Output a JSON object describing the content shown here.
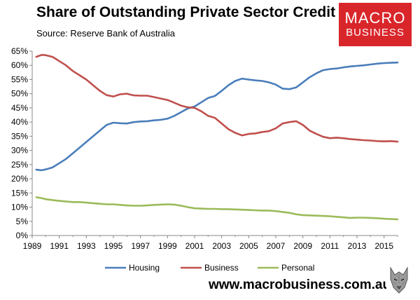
{
  "title": "Share of Outstanding Private Sector Credit",
  "subtitle": "Source: Reserve Bank of Australia",
  "logo": {
    "line1": "MACRO",
    "line2": "BUSINESS",
    "color": "#d9262b"
  },
  "footer": {
    "url": "www.macrobusiness.com.au"
  },
  "chart_data": {
    "type": "line",
    "title": "Share of Outstanding Private Sector Credit",
    "xlabel": "",
    "ylabel": "",
    "xlim": [
      1989,
      2016
    ],
    "ylim": [
      0,
      65
    ],
    "x_ticks": [
      1989,
      1991,
      1993,
      1995,
      1997,
      1999,
      2001,
      2003,
      2005,
      2007,
      2009,
      2011,
      2013,
      2015
    ],
    "y_ticks": [
      0,
      5,
      10,
      15,
      20,
      25,
      30,
      35,
      40,
      45,
      50,
      55,
      60,
      65
    ],
    "y_tick_labels": [
      "0%",
      "5%",
      "10%",
      "15%",
      "20%",
      "25%",
      "30%",
      "35%",
      "40%",
      "45%",
      "50%",
      "55%",
      "60%",
      "65%"
    ],
    "grid": false,
    "legend_position": "bottom",
    "series": [
      {
        "name": "Housing",
        "color": "#4a7ebb",
        "points": [
          [
            1989.3,
            23.2
          ],
          [
            1989.7,
            23.0
          ],
          [
            1990.0,
            23.3
          ],
          [
            1990.5,
            24.0
          ],
          [
            1991.0,
            25.5
          ],
          [
            1991.5,
            27.0
          ],
          [
            1992.0,
            29.0
          ],
          [
            1992.5,
            31.0
          ],
          [
            1993.0,
            33.0
          ],
          [
            1993.5,
            35.0
          ],
          [
            1994.0,
            37.0
          ],
          [
            1994.5,
            39.0
          ],
          [
            1995.0,
            39.8
          ],
          [
            1995.5,
            39.6
          ],
          [
            1996.0,
            39.5
          ],
          [
            1996.5,
            40.0
          ],
          [
            1997.0,
            40.2
          ],
          [
            1997.5,
            40.3
          ],
          [
            1998.0,
            40.6
          ],
          [
            1998.5,
            40.8
          ],
          [
            1999.0,
            41.2
          ],
          [
            1999.5,
            42.2
          ],
          [
            2000.0,
            43.5
          ],
          [
            2000.5,
            44.8
          ],
          [
            2001.0,
            45.5
          ],
          [
            2001.5,
            47.0
          ],
          [
            2002.0,
            48.5
          ],
          [
            2002.5,
            49.2
          ],
          [
            2003.0,
            51.0
          ],
          [
            2003.5,
            53.0
          ],
          [
            2004.0,
            54.5
          ],
          [
            2004.5,
            55.3
          ],
          [
            2005.0,
            55.0
          ],
          [
            2005.5,
            54.7
          ],
          [
            2006.0,
            54.5
          ],
          [
            2006.5,
            54.0
          ],
          [
            2007.0,
            53.2
          ],
          [
            2007.5,
            51.8
          ],
          [
            2008.0,
            51.6
          ],
          [
            2008.5,
            52.2
          ],
          [
            2009.0,
            54.0
          ],
          [
            2009.5,
            55.8
          ],
          [
            2010.0,
            57.2
          ],
          [
            2010.5,
            58.3
          ],
          [
            2011.0,
            58.7
          ],
          [
            2011.5,
            58.9
          ],
          [
            2012.0,
            59.3
          ],
          [
            2012.5,
            59.6
          ],
          [
            2013.0,
            59.8
          ],
          [
            2013.5,
            60.0
          ],
          [
            2014.0,
            60.3
          ],
          [
            2014.5,
            60.6
          ],
          [
            2015.0,
            60.8
          ],
          [
            2015.5,
            60.9
          ],
          [
            2016.0,
            61.0
          ]
        ]
      },
      {
        "name": "Business",
        "color": "#c0504d",
        "points": [
          [
            1989.3,
            63.0
          ],
          [
            1989.7,
            63.7
          ],
          [
            1990.0,
            63.6
          ],
          [
            1990.5,
            63.0
          ],
          [
            1991.0,
            61.5
          ],
          [
            1991.5,
            60.0
          ],
          [
            1992.0,
            58.0
          ],
          [
            1992.5,
            56.5
          ],
          [
            1993.0,
            55.0
          ],
          [
            1993.5,
            53.0
          ],
          [
            1994.0,
            51.0
          ],
          [
            1994.5,
            49.5
          ],
          [
            1995.0,
            49.0
          ],
          [
            1995.5,
            49.8
          ],
          [
            1996.0,
            50.0
          ],
          [
            1996.5,
            49.4
          ],
          [
            1997.0,
            49.3
          ],
          [
            1997.5,
            49.3
          ],
          [
            1998.0,
            48.8
          ],
          [
            1998.5,
            48.3
          ],
          [
            1999.0,
            47.8
          ],
          [
            1999.5,
            46.8
          ],
          [
            2000.0,
            45.8
          ],
          [
            2000.5,
            45.2
          ],
          [
            2001.0,
            45.0
          ],
          [
            2001.5,
            43.8
          ],
          [
            2002.0,
            42.2
          ],
          [
            2002.5,
            41.5
          ],
          [
            2003.0,
            39.5
          ],
          [
            2003.5,
            37.5
          ],
          [
            2004.0,
            36.2
          ],
          [
            2004.5,
            35.3
          ],
          [
            2005.0,
            35.8
          ],
          [
            2005.5,
            36.0
          ],
          [
            2006.0,
            36.5
          ],
          [
            2006.5,
            36.8
          ],
          [
            2007.0,
            37.8
          ],
          [
            2007.5,
            39.5
          ],
          [
            2008.0,
            40.0
          ],
          [
            2008.5,
            40.3
          ],
          [
            2009.0,
            39.0
          ],
          [
            2009.5,
            37.0
          ],
          [
            2010.0,
            35.8
          ],
          [
            2010.5,
            34.8
          ],
          [
            2011.0,
            34.3
          ],
          [
            2011.5,
            34.5
          ],
          [
            2012.0,
            34.3
          ],
          [
            2012.5,
            34.0
          ],
          [
            2013.0,
            33.8
          ],
          [
            2013.5,
            33.6
          ],
          [
            2014.0,
            33.5
          ],
          [
            2014.5,
            33.3
          ],
          [
            2015.0,
            33.2
          ],
          [
            2015.5,
            33.3
          ],
          [
            2016.0,
            33.1
          ]
        ]
      },
      {
        "name": "Personal",
        "color": "#9bbb59",
        "points": [
          [
            1989.3,
            13.5
          ],
          [
            1989.7,
            13.2
          ],
          [
            1990.0,
            12.8
          ],
          [
            1990.5,
            12.5
          ],
          [
            1991.0,
            12.2
          ],
          [
            1991.5,
            12.0
          ],
          [
            1992.0,
            11.8
          ],
          [
            1992.5,
            11.8
          ],
          [
            1993.0,
            11.6
          ],
          [
            1993.5,
            11.4
          ],
          [
            1994.0,
            11.2
          ],
          [
            1994.5,
            11.0
          ],
          [
            1995.0,
            11.0
          ],
          [
            1995.5,
            10.8
          ],
          [
            1996.0,
            10.6
          ],
          [
            1996.5,
            10.5
          ],
          [
            1997.0,
            10.5
          ],
          [
            1997.5,
            10.6
          ],
          [
            1998.0,
            10.8
          ],
          [
            1998.5,
            10.9
          ],
          [
            1999.0,
            11.0
          ],
          [
            1999.5,
            10.9
          ],
          [
            2000.0,
            10.5
          ],
          [
            2000.5,
            10.0
          ],
          [
            2001.0,
            9.6
          ],
          [
            2001.5,
            9.5
          ],
          [
            2002.0,
            9.4
          ],
          [
            2002.5,
            9.4
          ],
          [
            2003.0,
            9.3
          ],
          [
            2003.5,
            9.3
          ],
          [
            2004.0,
            9.2
          ],
          [
            2004.5,
            9.1
          ],
          [
            2005.0,
            9.0
          ],
          [
            2005.5,
            8.9
          ],
          [
            2006.0,
            8.8
          ],
          [
            2006.5,
            8.8
          ],
          [
            2007.0,
            8.6
          ],
          [
            2007.5,
            8.3
          ],
          [
            2008.0,
            8.0
          ],
          [
            2008.5,
            7.5
          ],
          [
            2009.0,
            7.2
          ],
          [
            2009.5,
            7.1
          ],
          [
            2010.0,
            7.0
          ],
          [
            2010.5,
            6.9
          ],
          [
            2011.0,
            6.8
          ],
          [
            2011.5,
            6.6
          ],
          [
            2012.0,
            6.4
          ],
          [
            2012.5,
            6.2
          ],
          [
            2013.0,
            6.3
          ],
          [
            2013.5,
            6.3
          ],
          [
            2014.0,
            6.2
          ],
          [
            2014.5,
            6.1
          ],
          [
            2015.0,
            5.9
          ],
          [
            2015.5,
            5.8
          ],
          [
            2016.0,
            5.7
          ]
        ]
      }
    ]
  }
}
